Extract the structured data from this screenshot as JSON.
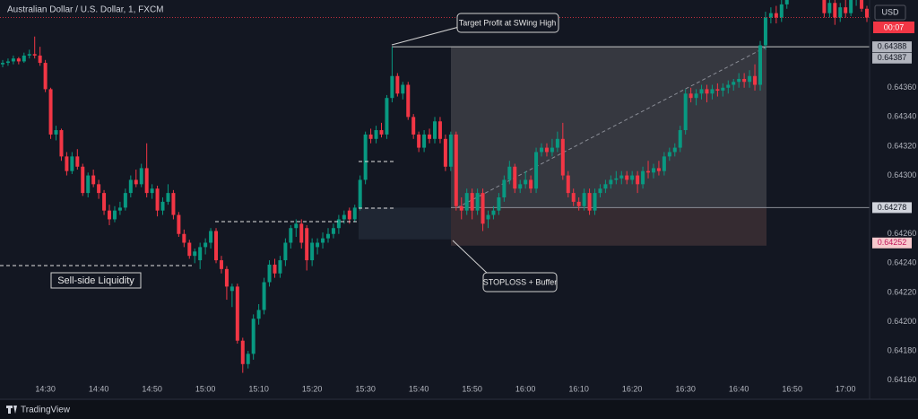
{
  "chart_data": {
    "type": "candlestick",
    "title": "Australian Dollar / U.S. Dollar, 1, FXCM",
    "currency": "USD",
    "countdown": "00:07",
    "up_color": "#089981",
    "down_color": "#f23645",
    "grid": false,
    "xlim": [
      "14:22",
      "17:04"
    ],
    "xticks": [
      "14:30",
      "14:40",
      "14:50",
      "15:00",
      "15:10",
      "15:20",
      "15:30",
      "15:40",
      "15:50",
      "16:00",
      "16:10",
      "16:20",
      "16:30",
      "16:40",
      "16:50",
      "17:00"
    ],
    "ylim": [
      0.6415,
      0.6442
    ],
    "yticks": [
      {
        "value": 0.6416,
        "label": "0.64160"
      },
      {
        "value": 0.6418,
        "label": "0.64180"
      },
      {
        "value": 0.642,
        "label": "0.64200"
      },
      {
        "value": 0.6422,
        "label": "0.64220"
      },
      {
        "value": 0.6424,
        "label": "0.64240"
      },
      {
        "value": 0.6426,
        "label": "0.64260"
      },
      {
        "value": 0.643,
        "label": "0.64300"
      },
      {
        "value": 0.6432,
        "label": "0.64320"
      },
      {
        "value": 0.6434,
        "label": "0.64340"
      },
      {
        "value": 0.6436,
        "label": "0.64360"
      }
    ],
    "price_labels": [
      0.64388,
      0.64387,
      0.64278,
      0.64252
    ],
    "annotations": [
      "Target Profit at SWing High",
      "STOPLOSS + Buffer",
      "Sell-side Liquidity"
    ],
    "x": [
      "14:22",
      "14:23",
      "14:24",
      "14:25",
      "14:26",
      "14:27",
      "14:28",
      "14:29",
      "14:30",
      "14:31",
      "14:32",
      "14:33",
      "14:34",
      "14:35",
      "14:36",
      "14:37",
      "14:38",
      "14:39",
      "14:40",
      "14:41",
      "14:42",
      "14:43",
      "14:44",
      "14:45",
      "14:46",
      "14:47",
      "14:48",
      "14:49",
      "14:50",
      "14:51",
      "14:52",
      "14:53",
      "14:54",
      "14:55",
      "14:56",
      "14:57",
      "14:58",
      "14:59",
      "15:00",
      "15:01",
      "15:02",
      "15:03",
      "15:04",
      "15:05",
      "15:06",
      "15:07",
      "15:08",
      "15:09",
      "15:10",
      "15:11",
      "15:12",
      "15:13",
      "15:14",
      "15:15",
      "15:16",
      "15:17",
      "15:18",
      "15:19",
      "15:20",
      "15:21",
      "15:22",
      "15:23",
      "15:24",
      "15:25",
      "15:26",
      "15:27",
      "15:28",
      "15:29",
      "15:30",
      "15:31",
      "15:32",
      "15:33",
      "15:34",
      "15:35",
      "15:36",
      "15:37",
      "15:38",
      "15:39",
      "15:40",
      "15:41",
      "15:42",
      "15:43",
      "15:44",
      "15:45",
      "15:46",
      "15:47",
      "15:48",
      "15:49",
      "15:50",
      "15:51",
      "15:52",
      "15:53",
      "15:54",
      "15:55",
      "15:56",
      "15:57",
      "15:58",
      "15:59",
      "16:00",
      "16:01",
      "16:02",
      "16:03",
      "16:04",
      "16:05",
      "16:06",
      "16:07",
      "16:08",
      "16:09",
      "16:10",
      "16:11",
      "16:12",
      "16:13",
      "16:14",
      "16:15",
      "16:16",
      "16:17",
      "16:18",
      "16:19",
      "16:20",
      "16:21",
      "16:22",
      "16:23",
      "16:24",
      "16:25",
      "16:26",
      "16:27",
      "16:28",
      "16:29",
      "16:30",
      "16:31",
      "16:32",
      "16:33",
      "16:34",
      "16:35",
      "16:36",
      "16:37",
      "16:38",
      "16:39",
      "16:40",
      "16:41",
      "16:42",
      "16:43",
      "16:44",
      "16:45",
      "16:46",
      "16:47",
      "16:48",
      "16:49",
      "16:56",
      "16:57",
      "16:58",
      "16:59",
      "17:00",
      "17:01",
      "17:02",
      "17:03",
      "17:04"
    ],
    "ohlc": [
      [
        0.64376,
        0.64379,
        0.64374,
        0.64377
      ],
      [
        0.64377,
        0.6438,
        0.64375,
        0.64378
      ],
      [
        0.64378,
        0.64382,
        0.64376,
        0.6438
      ],
      [
        0.6438,
        0.64381,
        0.64376,
        0.64378
      ],
      [
        0.64378,
        0.64384,
        0.64377,
        0.64382
      ],
      [
        0.64382,
        0.64386,
        0.6438,
        0.64383
      ],
      [
        0.64383,
        0.64395,
        0.6438,
        0.64382
      ],
      [
        0.64382,
        0.64388,
        0.64375,
        0.64377
      ],
      [
        0.64377,
        0.64379,
        0.64357,
        0.64359
      ],
      [
        0.64359,
        0.6436,
        0.64325,
        0.64328
      ],
      [
        0.64328,
        0.64334,
        0.64324,
        0.64331
      ],
      [
        0.64331,
        0.64332,
        0.6431,
        0.64313
      ],
      [
        0.64313,
        0.64316,
        0.643,
        0.64303
      ],
      [
        0.64303,
        0.64316,
        0.64301,
        0.64313
      ],
      [
        0.64313,
        0.64318,
        0.64304,
        0.64306
      ],
      [
        0.64306,
        0.64308,
        0.64286,
        0.64288
      ],
      [
        0.64288,
        0.64302,
        0.64285,
        0.643
      ],
      [
        0.643,
        0.64304,
        0.64292,
        0.64294
      ],
      [
        0.64294,
        0.64297,
        0.64284,
        0.64288
      ],
      [
        0.64288,
        0.6429,
        0.64273,
        0.64276
      ],
      [
        0.64276,
        0.6428,
        0.64266,
        0.6427
      ],
      [
        0.6427,
        0.64279,
        0.64268,
        0.64276
      ],
      [
        0.64276,
        0.64282,
        0.64273,
        0.64278
      ],
      [
        0.64278,
        0.64291,
        0.64276,
        0.64288
      ],
      [
        0.64288,
        0.643,
        0.64285,
        0.64297
      ],
      [
        0.64297,
        0.64304,
        0.64292,
        0.64294
      ],
      [
        0.64294,
        0.64308,
        0.64292,
        0.64305
      ],
      [
        0.64305,
        0.64322,
        0.64285,
        0.64288
      ],
      [
        0.64288,
        0.64294,
        0.64284,
        0.64291
      ],
      [
        0.64291,
        0.64293,
        0.64272,
        0.64276
      ],
      [
        0.64276,
        0.64285,
        0.64273,
        0.64282
      ],
      [
        0.64282,
        0.64294,
        0.6428,
        0.64288
      ],
      [
        0.64288,
        0.6429,
        0.6427,
        0.64273
      ],
      [
        0.64273,
        0.64275,
        0.64258,
        0.6426
      ],
      [
        0.6426,
        0.64263,
        0.64251,
        0.64254
      ],
      [
        0.64254,
        0.64256,
        0.64243,
        0.64245
      ],
      [
        0.64245,
        0.6425,
        0.6424,
        0.64248
      ],
      [
        0.64242,
        0.64254,
        0.64236,
        0.64251
      ],
      [
        0.64251,
        0.64257,
        0.64246,
        0.64254
      ],
      [
        0.64254,
        0.64264,
        0.6425,
        0.64262
      ],
      [
        0.64262,
        0.64264,
        0.6424,
        0.64242
      ],
      [
        0.64242,
        0.64245,
        0.64233,
        0.64236
      ],
      [
        0.64236,
        0.64238,
        0.64215,
        0.64224
      ],
      [
        0.64221,
        0.64226,
        0.6421,
        0.64224
      ],
      [
        0.64224,
        0.64226,
        0.64185,
        0.64187
      ],
      [
        0.64187,
        0.64189,
        0.64165,
        0.64171
      ],
      [
        0.64171,
        0.6418,
        0.64168,
        0.64178
      ],
      [
        0.64178,
        0.64205,
        0.64174,
        0.64202
      ],
      [
        0.64202,
        0.64212,
        0.64198,
        0.64208
      ],
      [
        0.64208,
        0.6423,
        0.64205,
        0.64227
      ],
      [
        0.64227,
        0.64242,
        0.64224,
        0.64239
      ],
      [
        0.64239,
        0.64243,
        0.6423,
        0.64233
      ],
      [
        0.64233,
        0.64245,
        0.6423,
        0.64242
      ],
      [
        0.64242,
        0.64257,
        0.64238,
        0.64254
      ],
      [
        0.64254,
        0.64266,
        0.6425,
        0.64264
      ],
      [
        0.64264,
        0.6427,
        0.64258,
        0.64267
      ],
      [
        0.64267,
        0.6427,
        0.6425,
        0.64254
      ],
      [
        0.64264,
        0.64266,
        0.64235,
        0.64242
      ],
      [
        0.64242,
        0.64257,
        0.64238,
        0.64254
      ],
      [
        0.64251,
        0.64257,
        0.64246,
        0.64254
      ],
      [
        0.64254,
        0.64261,
        0.6425,
        0.64257
      ],
      [
        0.64257,
        0.64264,
        0.64254,
        0.6426
      ],
      [
        0.6426,
        0.64267,
        0.64257,
        0.64264
      ],
      [
        0.64264,
        0.64273,
        0.6426,
        0.6427
      ],
      [
        0.6427,
        0.64276,
        0.64267,
        0.64273
      ],
      [
        0.64276,
        0.64278,
        0.64267,
        0.6427
      ],
      [
        0.6427,
        0.6428,
        0.64268,
        0.64278
      ],
      [
        0.64278,
        0.643,
        0.64276,
        0.64297
      ],
      [
        0.64297,
        0.6433,
        0.64294,
        0.64328
      ],
      [
        0.64328,
        0.64332,
        0.64322,
        0.64325
      ],
      [
        0.64325,
        0.64334,
        0.64322,
        0.64331
      ],
      [
        0.64331,
        0.64336,
        0.64326,
        0.64328
      ],
      [
        0.64328,
        0.64355,
        0.64325,
        0.64353
      ],
      [
        0.64353,
        0.64388,
        0.6435,
        0.64368
      ],
      [
        0.64368,
        0.6437,
        0.64354,
        0.64356
      ],
      [
        0.64356,
        0.64364,
        0.64352,
        0.64362
      ],
      [
        0.64362,
        0.64364,
        0.64338,
        0.6434
      ],
      [
        0.6434,
        0.64342,
        0.64325,
        0.64328
      ],
      [
        0.64328,
        0.6433,
        0.64316,
        0.64319
      ],
      [
        0.64319,
        0.64331,
        0.64316,
        0.64328
      ],
      [
        0.64328,
        0.64332,
        0.64322,
        0.64325
      ],
      [
        0.64325,
        0.6434,
        0.64322,
        0.64337
      ],
      [
        0.64337,
        0.6434,
        0.64322,
        0.64325
      ],
      [
        0.64325,
        0.64328,
        0.64303,
        0.64306
      ],
      [
        0.64306,
        0.6433,
        0.64303,
        0.64328
      ],
      [
        0.64328,
        0.6433,
        0.64276,
        0.64279
      ],
      [
        0.64279,
        0.64285,
        0.6427,
        0.64276
      ],
      [
        0.64276,
        0.64291,
        0.64273,
        0.64288
      ],
      [
        0.64288,
        0.64291,
        0.6427,
        0.64276
      ],
      [
        0.64276,
        0.64291,
        0.64273,
        0.64288
      ],
      [
        0.64288,
        0.64291,
        0.64262,
        0.64267
      ],
      [
        0.6427,
        0.64276,
        0.64264,
        0.64273
      ],
      [
        0.64273,
        0.64279,
        0.6427,
        0.64276
      ],
      [
        0.64276,
        0.64288,
        0.64273,
        0.64285
      ],
      [
        0.64285,
        0.643,
        0.64282,
        0.64297
      ],
      [
        0.64297,
        0.6431,
        0.64294,
        0.64306
      ],
      [
        0.64306,
        0.64308,
        0.64288,
        0.64291
      ],
      [
        0.64291,
        0.64297,
        0.64288,
        0.64294
      ],
      [
        0.64294,
        0.64303,
        0.64291,
        0.64297
      ],
      [
        0.64297,
        0.643,
        0.64288,
        0.64291
      ],
      [
        0.64291,
        0.64319,
        0.64288,
        0.64316
      ],
      [
        0.64316,
        0.64322,
        0.64313,
        0.64319
      ],
      [
        0.64319,
        0.64322,
        0.64313,
        0.64316
      ],
      [
        0.64316,
        0.64325,
        0.64313,
        0.64319
      ],
      [
        0.64319,
        0.6433,
        0.64316,
        0.64325
      ],
      [
        0.64325,
        0.64336,
        0.64297,
        0.643
      ],
      [
        0.643,
        0.64303,
        0.64285,
        0.64288
      ],
      [
        0.64288,
        0.64291,
        0.64279,
        0.64282
      ],
      [
        0.64282,
        0.64285,
        0.64276,
        0.64279
      ],
      [
        0.64279,
        0.64291,
        0.64276,
        0.64288
      ],
      [
        0.64288,
        0.64291,
        0.64273,
        0.64276
      ],
      [
        0.64276,
        0.64291,
        0.64273,
        0.64288
      ],
      [
        0.64288,
        0.64294,
        0.64285,
        0.64291
      ],
      [
        0.64291,
        0.64297,
        0.64288,
        0.64294
      ],
      [
        0.64294,
        0.643,
        0.64291,
        0.64297
      ],
      [
        0.64297,
        0.64303,
        0.64294,
        0.64298
      ],
      [
        0.64298,
        0.64303,
        0.64294,
        0.643
      ],
      [
        0.643,
        0.64303,
        0.64294,
        0.64297
      ],
      [
        0.64297,
        0.64303,
        0.64294,
        0.643
      ],
      [
        0.643,
        0.64303,
        0.64288,
        0.64294
      ],
      [
        0.64294,
        0.64306,
        0.64291,
        0.64303
      ],
      [
        0.64303,
        0.6431,
        0.64298,
        0.64302
      ],
      [
        0.64302,
        0.64308,
        0.64298,
        0.64305
      ],
      [
        0.64305,
        0.6431,
        0.643,
        0.64303
      ],
      [
        0.64303,
        0.64316,
        0.643,
        0.64313
      ],
      [
        0.64313,
        0.64319,
        0.6431,
        0.64316
      ],
      [
        0.64316,
        0.64322,
        0.64313,
        0.64319
      ],
      [
        0.64319,
        0.64334,
        0.64316,
        0.64331
      ],
      [
        0.64331,
        0.64359,
        0.64328,
        0.64356
      ],
      [
        0.64356,
        0.6436,
        0.6435,
        0.64353
      ],
      [
        0.64353,
        0.64359,
        0.64348,
        0.64356
      ],
      [
        0.64356,
        0.64362,
        0.64352,
        0.64359
      ],
      [
        0.64359,
        0.64362,
        0.6435,
        0.64356
      ],
      [
        0.64356,
        0.64362,
        0.64352,
        0.64359
      ],
      [
        0.64359,
        0.64363,
        0.64354,
        0.64358
      ],
      [
        0.64358,
        0.64363,
        0.64354,
        0.6436
      ],
      [
        0.6436,
        0.64365,
        0.64356,
        0.64362
      ],
      [
        0.64362,
        0.64366,
        0.64358,
        0.64364
      ],
      [
        0.64364,
        0.6437,
        0.6436,
        0.64366
      ],
      [
        0.64366,
        0.6437,
        0.6436,
        0.64364
      ],
      [
        0.64364,
        0.64372,
        0.6436,
        0.64368
      ],
      [
        0.64368,
        0.64376,
        0.64358,
        0.64362
      ],
      [
        0.64362,
        0.64392,
        0.64358,
        0.64389
      ],
      [
        0.64389,
        0.64412,
        0.64386,
        0.64408
      ],
      [
        0.64408,
        0.64415,
        0.64404,
        0.64411
      ],
      [
        0.64411,
        0.64416,
        0.64404,
        0.64408
      ],
      [
        0.64408,
        0.6442,
        0.64405,
        0.64417
      ],
      [
        0.64417,
        0.64428,
        0.64414,
        0.64423
      ],
      [
        0.6442,
        0.64424,
        0.64408,
        0.64411
      ],
      [
        0.64411,
        0.64421,
        0.64408,
        0.64418
      ],
      [
        0.64418,
        0.64421,
        0.64403,
        0.64408
      ],
      [
        0.64408,
        0.64418,
        0.64405,
        0.64415
      ],
      [
        0.64415,
        0.6442,
        0.64408,
        0.64411
      ],
      [
        0.64411,
        0.64422,
        0.64409,
        0.6442
      ],
      [
        0.6442,
        0.64426,
        0.64416,
        0.64423
      ],
      [
        0.64423,
        0.64425,
        0.64412,
        0.64414
      ],
      [
        0.64414,
        0.64416,
        0.64405,
        0.64408
      ]
    ]
  },
  "footer": {
    "brand": "TradingView"
  }
}
